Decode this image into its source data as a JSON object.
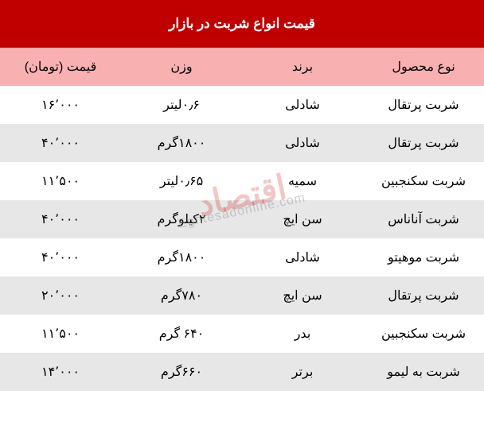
{
  "title": "قیمت انواع  شربت در بازار",
  "columns": [
    "نوع محصول",
    "برند",
    "وزن",
    "قیمت (تومان)"
  ],
  "rows": [
    [
      "شربت پرتقال",
      "شادلی",
      "۰٫۶لیتر",
      "۱۶٬۰۰۰"
    ],
    [
      "شربت پرتقال",
      "شادلی",
      "۱۸۰۰گرم",
      "۴۰٬۰۰۰"
    ],
    [
      "شربت سکنجبین",
      "سمیه",
      "۰٫۶۵لیتر",
      "۱۱٬۵۰۰"
    ],
    [
      "شربت آناناس",
      "سن ایچ",
      "۲کیلوگرم",
      "۴۰٬۰۰۰"
    ],
    [
      "شربت موهیتو",
      "شادلی",
      "۱۸۰۰گرم",
      "۴۰٬۰۰۰"
    ],
    [
      "شربت پرتقال",
      "سن ایچ",
      "۷۸۰گرم",
      "۲۰٬۰۰۰"
    ],
    [
      "شربت سکنجبین",
      "بدر",
      "۶۴۰ گرم",
      "۱۱٬۵۰۰"
    ],
    [
      "شربت به لیمو",
      "برتر",
      "۶۶۰گرم",
      "۱۴٬۰۰۰"
    ]
  ],
  "styling": {
    "title_bg": "#c00000",
    "title_color": "#ffffff",
    "title_fontsize": 17,
    "header_bg": "#f8b0b0",
    "header_color": "#000000",
    "header_fontsize": 16,
    "row_even_bg": "#ffffff",
    "row_odd_bg": "#e7e7e7",
    "cell_fontsize": 16,
    "cell_color": "#000000",
    "direction": "rtl"
  },
  "watermark": {
    "text_main": "اقتصاد",
    "text_sub": "Eghtesadonline.com",
    "color_main": "rgba(192,0,0,0.22)",
    "color_sub": "rgba(160,160,160,0.5)"
  }
}
